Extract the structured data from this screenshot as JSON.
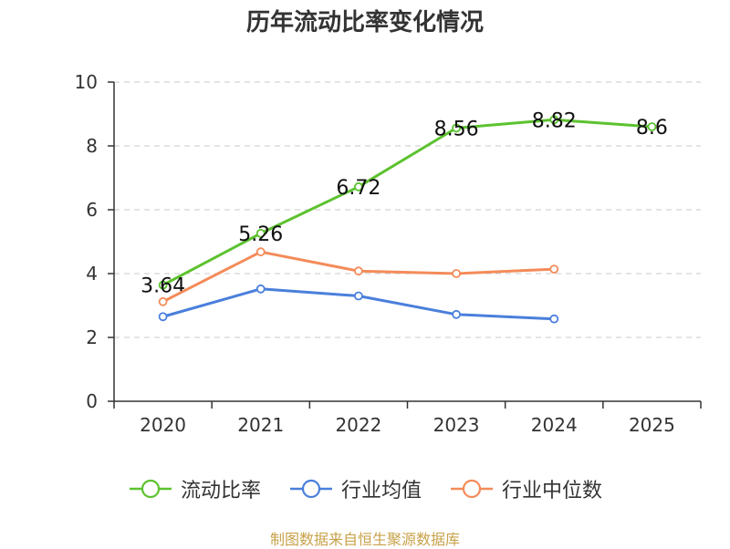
{
  "chart_data": {
    "type": "line",
    "title": "历年流动比率变化情况",
    "categories": [
      "2020",
      "2021",
      "2022",
      "2023",
      "2024",
      "2025"
    ],
    "ylim": [
      0,
      10
    ],
    "yticks": [
      0,
      2,
      4,
      6,
      8,
      10
    ],
    "grid": true,
    "legend_position": "bottom",
    "series": [
      {
        "name": "流动比率",
        "color": "#5cc22f",
        "values": [
          3.64,
          5.26,
          6.72,
          8.56,
          8.82,
          8.6
        ],
        "data_labels": [
          "3.64",
          "5.26",
          "6.72",
          "8.56",
          "8.82",
          "8.6"
        ]
      },
      {
        "name": "行业均值",
        "color": "#4a7fdc",
        "values": [
          2.65,
          3.52,
          3.3,
          2.72,
          2.58,
          null
        ]
      },
      {
        "name": "行业中位数",
        "color": "#f48b59",
        "values": [
          3.12,
          4.68,
          4.08,
          4.0,
          4.14,
          null
        ]
      }
    ]
  },
  "source_note": "制图数据来自恒生聚源数据库"
}
